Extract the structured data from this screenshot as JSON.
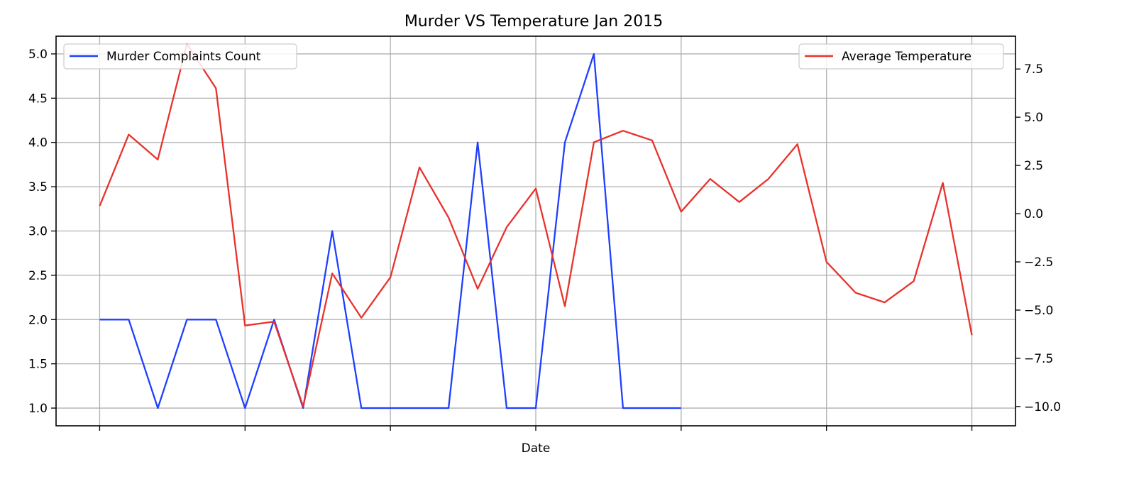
{
  "chart_data": {
    "type": "line",
    "title": "Murder  VS Temperature Jan 2015",
    "xlabel": "Date",
    "ylabel_left": "",
    "ylabel_right": "",
    "x": [
      1,
      2,
      3,
      4,
      5,
      6,
      7,
      8,
      9,
      10,
      11,
      12,
      13,
      14,
      15,
      16,
      17,
      18,
      19,
      20,
      21,
      22,
      23,
      24,
      25,
      26,
      27,
      28,
      29,
      30,
      31
    ],
    "xlim": [
      -0.5,
      32.5
    ],
    "x_tick_label_values": [
      1,
      6,
      11,
      16,
      21,
      26,
      31
    ],
    "x_tick_labels": [
      "",
      "",
      "",
      "",
      "",
      "",
      ""
    ],
    "grid": true,
    "left_axis": {
      "ylim": [
        0.8,
        5.2
      ],
      "ticks": [
        1.0,
        1.5,
        2.0,
        2.5,
        3.0,
        3.5,
        4.0,
        4.5,
        5.0
      ],
      "tick_labels": [
        "1.0",
        "1.5",
        "2.0",
        "2.5",
        "3.0",
        "3.5",
        "4.0",
        "4.5",
        "5.0"
      ]
    },
    "right_axis": {
      "ylim": [
        -11.0,
        9.2
      ],
      "ticks": [
        -10.0,
        -7.5,
        -5.0,
        -2.5,
        0.0,
        2.5,
        5.0,
        7.5
      ],
      "tick_labels": [
        "−10.0",
        "−7.5",
        "−5.0",
        "−2.5",
        "0.0",
        "2.5",
        "5.0",
        "7.5"
      ]
    },
    "series": [
      {
        "name": "Murder Complaints Count",
        "axis": "left",
        "color": "#1f3fff",
        "legend_position": "upper-left",
        "x": [
          1,
          2,
          3,
          4,
          5,
          6,
          7,
          8,
          9,
          10,
          11,
          12,
          13,
          14,
          15,
          16,
          17,
          18,
          19,
          20,
          21
        ],
        "values": [
          2,
          2,
          1,
          2,
          2,
          1,
          2,
          1,
          3,
          1,
          1,
          1,
          1,
          4,
          1,
          1,
          4,
          5,
          1,
          1,
          1
        ]
      },
      {
        "name": "Average Temperature",
        "axis": "right",
        "color": "#e8322c",
        "legend_position": "upper-right",
        "x": [
          1,
          2,
          3,
          4,
          5,
          6,
          7,
          8,
          9,
          10,
          11,
          12,
          13,
          14,
          15,
          16,
          17,
          18,
          19,
          20,
          21,
          22,
          23,
          24,
          25,
          26,
          27,
          28,
          29,
          30,
          31
        ],
        "values": [
          0.4,
          4.1,
          2.8,
          8.8,
          6.5,
          -5.8,
          -5.6,
          -10.0,
          -3.1,
          -5.4,
          -3.3,
          2.4,
          -0.2,
          -3.9,
          -0.7,
          1.3,
          -4.8,
          3.7,
          4.3,
          3.8,
          0.1,
          1.8,
          0.6,
          1.8,
          3.6,
          -2.5,
          -4.1,
          -4.6,
          -3.5,
          1.6,
          -6.3
        ]
      }
    ]
  }
}
